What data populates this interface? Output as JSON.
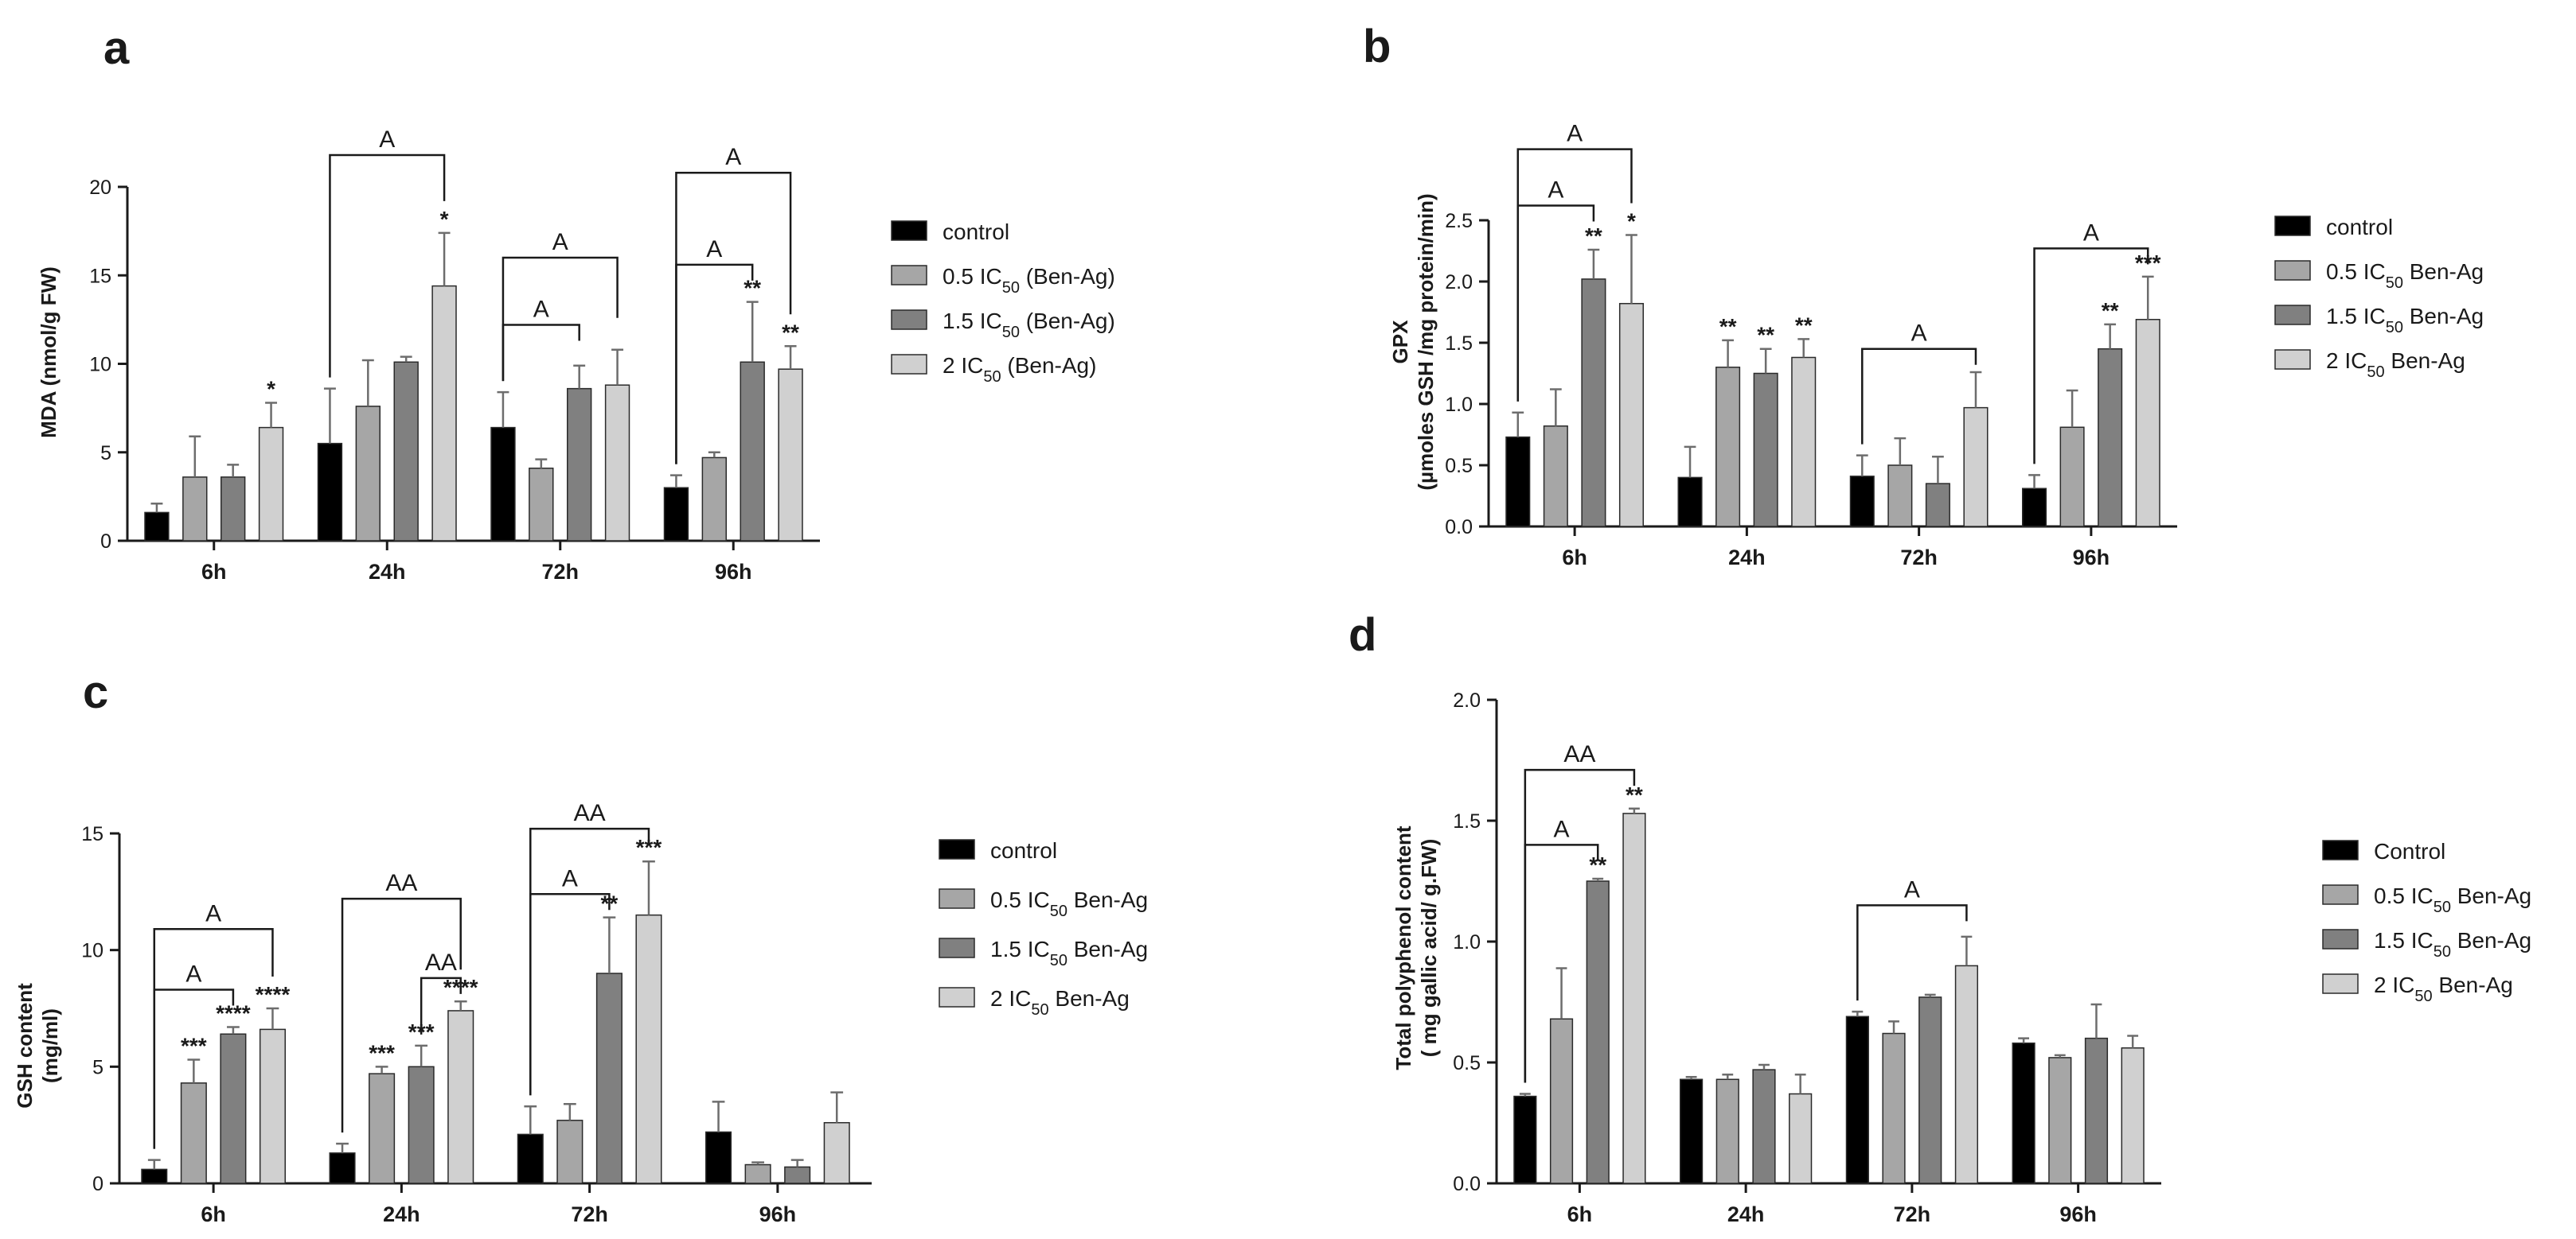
{
  "figure": {
    "panels": [
      "a",
      "b",
      "c",
      "d"
    ]
  },
  "chart_data": [
    {
      "id": "a",
      "panel_label": "a",
      "type": "bar",
      "title": "",
      "xlabel": "",
      "ylabel": "MDA (nmol/g FW)",
      "ylim": [
        0,
        20
      ],
      "yticks": [
        "0",
        "5",
        "10",
        "15",
        "20"
      ],
      "categories": [
        "6h",
        "24h",
        "72h",
        "96h"
      ],
      "legend": {
        "position": "right",
        "entries": [
          {
            "prefix": "0",
            "pre": "control",
            "sub": "",
            "post": ""
          },
          {
            "prefix": "1",
            "pre": "0.5 IC",
            "sub": "50",
            "post": " (Ben-Ag)"
          },
          {
            "prefix": "2",
            "pre": "1.5 IC",
            "sub": "50",
            "post": " (Ben-Ag)"
          },
          {
            "prefix": "3",
            "pre": "2 IC",
            "sub": "50",
            "post": " (Ben-Ag)"
          }
        ]
      },
      "series": [
        {
          "name": "control",
          "color": "#000000",
          "values": [
            1.6,
            5.5,
            6.4,
            3.0
          ],
          "errors": [
            0.5,
            3.1,
            2.0,
            0.7
          ]
        },
        {
          "name": "0.5 IC50 (Ben-Ag)",
          "color": "#a6a6a6",
          "values": [
            3.6,
            7.6,
            4.1,
            4.7
          ],
          "errors": [
            2.3,
            2.6,
            0.5,
            0.3
          ]
        },
        {
          "name": "1.5 IC50 (Ben-Ag)",
          "color": "#808080",
          "values": [
            3.6,
            10.1,
            8.6,
            10.1
          ],
          "errors": [
            0.7,
            0.3,
            1.3,
            3.4
          ]
        },
        {
          "name": "2 IC50 (Ben-Ag)",
          "color": "#d0d0d0",
          "values": [
            6.4,
            14.4,
            8.8,
            9.7
          ],
          "errors": [
            1.4,
            3.0,
            2.0,
            1.3
          ]
        }
      ],
      "significance": [
        {
          "cat": 0,
          "series": 3,
          "label": "*"
        },
        {
          "cat": 1,
          "series": 3,
          "label": "*"
        },
        {
          "cat": 3,
          "series": 2,
          "label": "**"
        },
        {
          "cat": 3,
          "series": 3,
          "label": "**"
        }
      ],
      "brackets": [
        {
          "cat": 1,
          "from": 0,
          "to": 3,
          "y": 21.8,
          "label": "A"
        },
        {
          "cat": 2,
          "from": 0,
          "to": 2,
          "y": 12.2,
          "label": "A"
        },
        {
          "cat": 2,
          "from": 0,
          "to": 3,
          "y": 16.0,
          "label": "A"
        },
        {
          "cat": 3,
          "from": 0,
          "to": 2,
          "y": 15.6,
          "label": "A"
        },
        {
          "cat": 3,
          "from": 0,
          "to": 3,
          "y": 20.8,
          "label": "A"
        }
      ]
    },
    {
      "id": "b",
      "panel_label": "b",
      "type": "bar",
      "title": "",
      "xlabel": "",
      "ylabel": "GPX",
      "ylabel2": "(µmoles GSH /mg protein/min)",
      "ylim": [
        0,
        2.5
      ],
      "yticks": [
        "0.0",
        "0.5",
        "1.0",
        "1.5",
        "2.0",
        "2.5"
      ],
      "categories": [
        "6h",
        "24h",
        "72h",
        "96h"
      ],
      "legend": {
        "position": "right",
        "entries": [
          {
            "prefix": "0",
            "pre": "control",
            "sub": "",
            "post": ""
          },
          {
            "prefix": "1",
            "pre": "0.5 IC",
            "sub": "50",
            "post": " Ben-Ag"
          },
          {
            "prefix": "2",
            "pre": "1.5 IC",
            "sub": "50",
            "post": " Ben-Ag"
          },
          {
            "prefix": "3",
            "pre": "2 IC",
            "sub": "50",
            "post": " Ben-Ag"
          }
        ]
      },
      "series": [
        {
          "name": "control",
          "color": "#000000",
          "values": [
            0.73,
            0.4,
            0.41,
            0.31
          ],
          "errors": [
            0.2,
            0.25,
            0.17,
            0.11
          ]
        },
        {
          "name": "0.5 IC50 Ben-Ag",
          "color": "#a6a6a6",
          "values": [
            0.82,
            1.3,
            0.5,
            0.81
          ],
          "errors": [
            0.3,
            0.22,
            0.22,
            0.3
          ]
        },
        {
          "name": "1.5 IC50 Ben-Ag",
          "color": "#808080",
          "values": [
            2.02,
            1.25,
            0.35,
            1.45
          ],
          "errors": [
            0.24,
            0.2,
            0.22,
            0.2
          ]
        },
        {
          "name": "2 IC50 Ben-Ag",
          "color": "#d0d0d0",
          "values": [
            1.82,
            1.38,
            0.97,
            1.69
          ],
          "errors": [
            0.56,
            0.15,
            0.29,
            0.35
          ]
        }
      ],
      "significance": [
        {
          "cat": 0,
          "series": 2,
          "label": "**"
        },
        {
          "cat": 0,
          "series": 3,
          "label": "*"
        },
        {
          "cat": 1,
          "series": 1,
          "label": "**"
        },
        {
          "cat": 1,
          "series": 2,
          "label": "**"
        },
        {
          "cat": 1,
          "series": 3,
          "label": "**"
        },
        {
          "cat": 3,
          "series": 2,
          "label": "**"
        },
        {
          "cat": 3,
          "series": 3,
          "label": "***"
        }
      ],
      "brackets": [
        {
          "cat": 0,
          "from": 0,
          "to": 2,
          "y": 2.62,
          "label": "A"
        },
        {
          "cat": 0,
          "from": 0,
          "to": 3,
          "y": 3.08,
          "label": "A"
        },
        {
          "cat": 2,
          "from": 0,
          "to": 3,
          "y": 1.45,
          "label": "A"
        },
        {
          "cat": 3,
          "from": 0,
          "to": 3,
          "y": 2.27,
          "label": "A"
        }
      ]
    },
    {
      "id": "c",
      "panel_label": "c",
      "type": "bar",
      "title": "",
      "xlabel": "",
      "ylabel": "GSH content",
      "ylabel2": "(mg/ml)",
      "ylim": [
        0,
        15
      ],
      "yticks": [
        "0",
        "5",
        "10",
        "15"
      ],
      "categories": [
        "6h",
        "24h",
        "72h",
        "96h"
      ],
      "legend": {
        "position": "right",
        "entries": [
          {
            "prefix": "0",
            "pre": "control",
            "sub": "",
            "post": ""
          },
          {
            "prefix": "1",
            "pre": "0.5 IC",
            "sub": "50",
            "post": " Ben-Ag"
          },
          {
            "prefix": "2",
            "pre": "1.5 IC",
            "sub": "50",
            "post": " Ben-Ag"
          },
          {
            "prefix": "3",
            "pre": "2 IC",
            "sub": "50",
            "post": " Ben-Ag"
          }
        ]
      },
      "series": [
        {
          "name": "control",
          "color": "#000000",
          "values": [
            0.6,
            1.3,
            2.1,
            2.2
          ],
          "errors": [
            0.4,
            0.4,
            1.2,
            1.3
          ]
        },
        {
          "name": "0.5 IC50 Ben-Ag",
          "color": "#a6a6a6",
          "values": [
            4.3,
            4.7,
            2.7,
            0.8
          ],
          "errors": [
            1.0,
            0.3,
            0.7,
            0.1
          ]
        },
        {
          "name": "1.5 IC50 Ben-Ag",
          "color": "#808080",
          "values": [
            6.4,
            5.0,
            9.0,
            0.7
          ],
          "errors": [
            0.3,
            0.9,
            2.4,
            0.3
          ]
        },
        {
          "name": "2 IC50 Ben-Ag",
          "color": "#d0d0d0",
          "values": [
            6.6,
            7.4,
            11.5,
            2.6
          ],
          "errors": [
            0.9,
            0.4,
            2.3,
            1.3
          ]
        }
      ],
      "significance": [
        {
          "cat": 0,
          "series": 1,
          "label": "***"
        },
        {
          "cat": 0,
          "series": 2,
          "label": "****"
        },
        {
          "cat": 0,
          "series": 3,
          "label": "****"
        },
        {
          "cat": 1,
          "series": 1,
          "label": "***"
        },
        {
          "cat": 1,
          "series": 2,
          "label": "***"
        },
        {
          "cat": 1,
          "series": 3,
          "label": "****"
        },
        {
          "cat": 2,
          "series": 2,
          "label": "**"
        },
        {
          "cat": 2,
          "series": 3,
          "label": "***"
        }
      ],
      "brackets": [
        {
          "cat": 0,
          "from": 0,
          "to": 2,
          "y": 8.3,
          "label": "A"
        },
        {
          "cat": 0,
          "from": 0,
          "to": 3,
          "y": 10.9,
          "label": "A"
        },
        {
          "cat": 1,
          "from": 2,
          "to": 3,
          "y": 8.8,
          "label": "AA"
        },
        {
          "cat": 1,
          "from": 0,
          "to": 3,
          "y": 12.2,
          "label": "AA"
        },
        {
          "cat": 2,
          "from": 0,
          "to": 2,
          "y": 12.4,
          "label": "A"
        },
        {
          "cat": 2,
          "from": 0,
          "to": 3,
          "y": 15.2,
          "label": "AA"
        }
      ]
    },
    {
      "id": "d",
      "panel_label": "d",
      "type": "bar",
      "title": "",
      "xlabel": "",
      "ylabel": "Total polyphenol content",
      "ylabel2": "( mg gallic acid/ g.FW)",
      "ylim": [
        0,
        2.0
      ],
      "yticks": [
        "0.0",
        "0.5",
        "1.0",
        "1.5",
        "2.0"
      ],
      "categories": [
        "6h",
        "24h",
        "72h",
        "96h"
      ],
      "legend": {
        "position": "right",
        "entries": [
          {
            "prefix": "0",
            "pre": "Control",
            "sub": "",
            "post": ""
          },
          {
            "prefix": "1",
            "pre": "0.5 IC",
            "sub": "50",
            "post": " Ben-Ag"
          },
          {
            "prefix": "2",
            "pre": "1.5 IC",
            "sub": "50",
            "post": " Ben-Ag"
          },
          {
            "prefix": "3",
            "pre": "2 IC",
            "sub": "50",
            "post": " Ben-Ag"
          }
        ]
      },
      "series": [
        {
          "name": "Control",
          "color": "#000000",
          "values": [
            0.36,
            0.43,
            0.69,
            0.58
          ],
          "errors": [
            0.01,
            0.01,
            0.02,
            0.02
          ]
        },
        {
          "name": "0.5 IC50 Ben-Ag",
          "color": "#a6a6a6",
          "values": [
            0.68,
            0.43,
            0.62,
            0.52
          ],
          "errors": [
            0.21,
            0.02,
            0.05,
            0.01
          ]
        },
        {
          "name": "1.5 IC50 Ben-Ag",
          "color": "#808080",
          "values": [
            1.25,
            0.47,
            0.77,
            0.6
          ],
          "errors": [
            0.01,
            0.02,
            0.01,
            0.14
          ]
        },
        {
          "name": "2 IC50 Ben-Ag",
          "color": "#d0d0d0",
          "values": [
            1.53,
            0.37,
            0.9,
            0.56
          ],
          "errors": [
            0.02,
            0.08,
            0.12,
            0.05
          ]
        }
      ],
      "significance": [
        {
          "cat": 0,
          "series": 2,
          "label": "**"
        },
        {
          "cat": 0,
          "series": 3,
          "label": "**"
        }
      ],
      "brackets": [
        {
          "cat": 0,
          "from": 0,
          "to": 2,
          "y": 1.4,
          "label": "A"
        },
        {
          "cat": 0,
          "from": 0,
          "to": 3,
          "y": 1.71,
          "label": "AA"
        },
        {
          "cat": 2,
          "from": 0,
          "to": 3,
          "y": 1.15,
          "label": "A"
        }
      ]
    }
  ]
}
